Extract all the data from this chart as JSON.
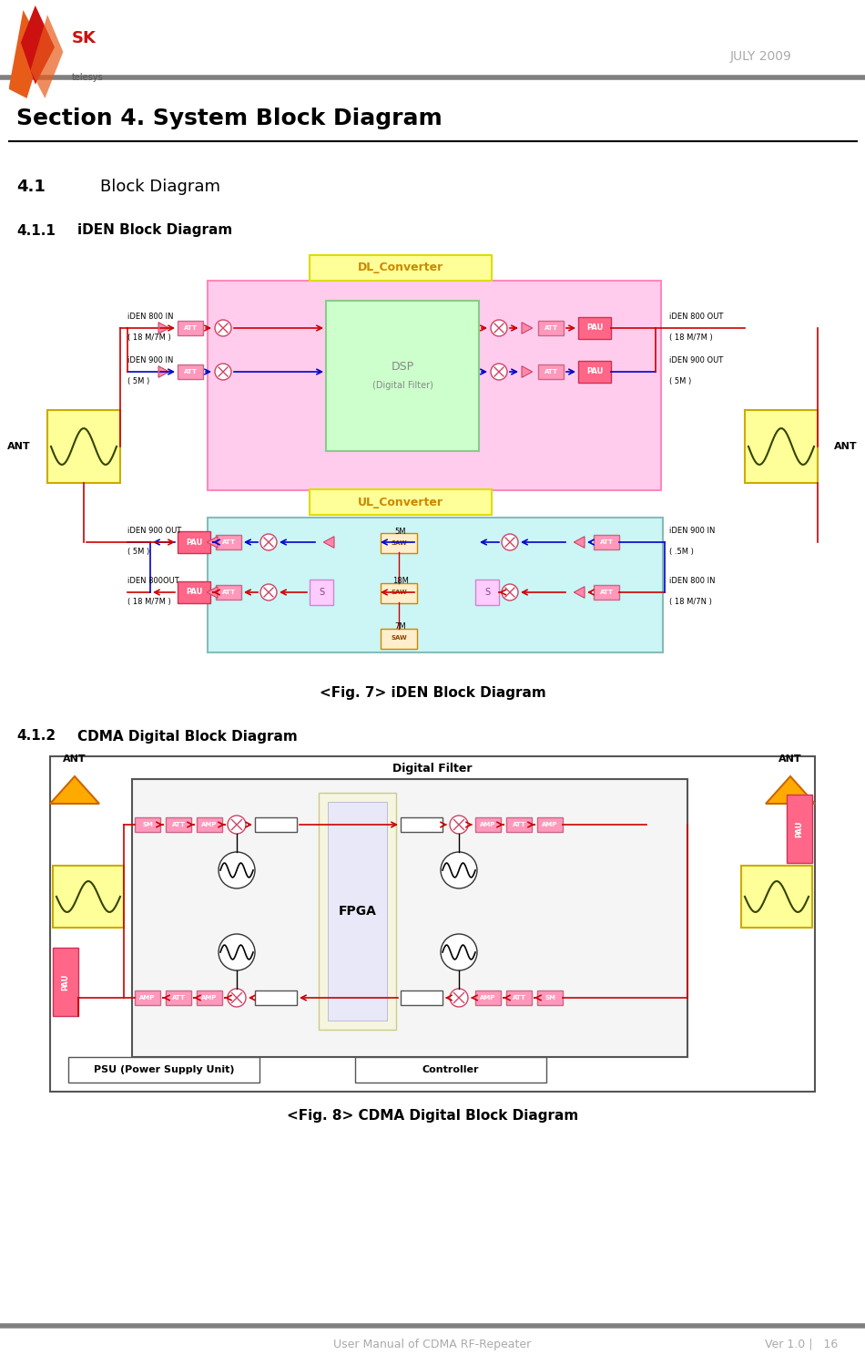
{
  "page_width": 9.5,
  "page_height": 14.98,
  "bg_color": "#ffffff",
  "header_bar_color": "#808080",
  "footer_bar_color": "#808080",
  "header_text": "JULY 2009",
  "header_text_color": "#aaaaaa",
  "section_title": "Section 4. System Block Diagram",
  "subsection_41_num": "4.1",
  "subsection_41_txt": "Block Diagram",
  "subsection_411_num": "4.1.1",
  "subsection_411_txt": "iDEN Block Diagram",
  "subsection_412_num": "4.1.2",
  "subsection_412_txt": "CDMA Digital Block Diagram",
  "fig7_caption": "<Fig. 7> iDEN Block Diagram",
  "fig8_caption": "<Fig. 8> CDMA Digital Block Diagram",
  "footer_left": "User Manual of CDMA RF-Repeater",
  "footer_right": "Ver 1.0 |   16",
  "footer_color": "#aaaaaa",
  "color_pink_fill": "#ffccee",
  "color_pink_edge": "#ff88bb",
  "color_pink_dark": "#ff6699",
  "color_pink_triangle": "#ff88aa",
  "color_yellow_fill": "#ffff99",
  "color_yellow_edge": "#dddd00",
  "color_green_fill": "#ccffcc",
  "color_green_edge": "#88cc88",
  "color_cyan_fill": "#ccf5f5",
  "color_cyan_edge": "#88bbbb",
  "color_att_fill": "#ff99bb",
  "color_att_edge": "#cc6688",
  "color_pau_fill": "#ff6688",
  "color_red": "#cc0000",
  "color_blue": "#0000cc",
  "color_dsp_text": "#888888"
}
